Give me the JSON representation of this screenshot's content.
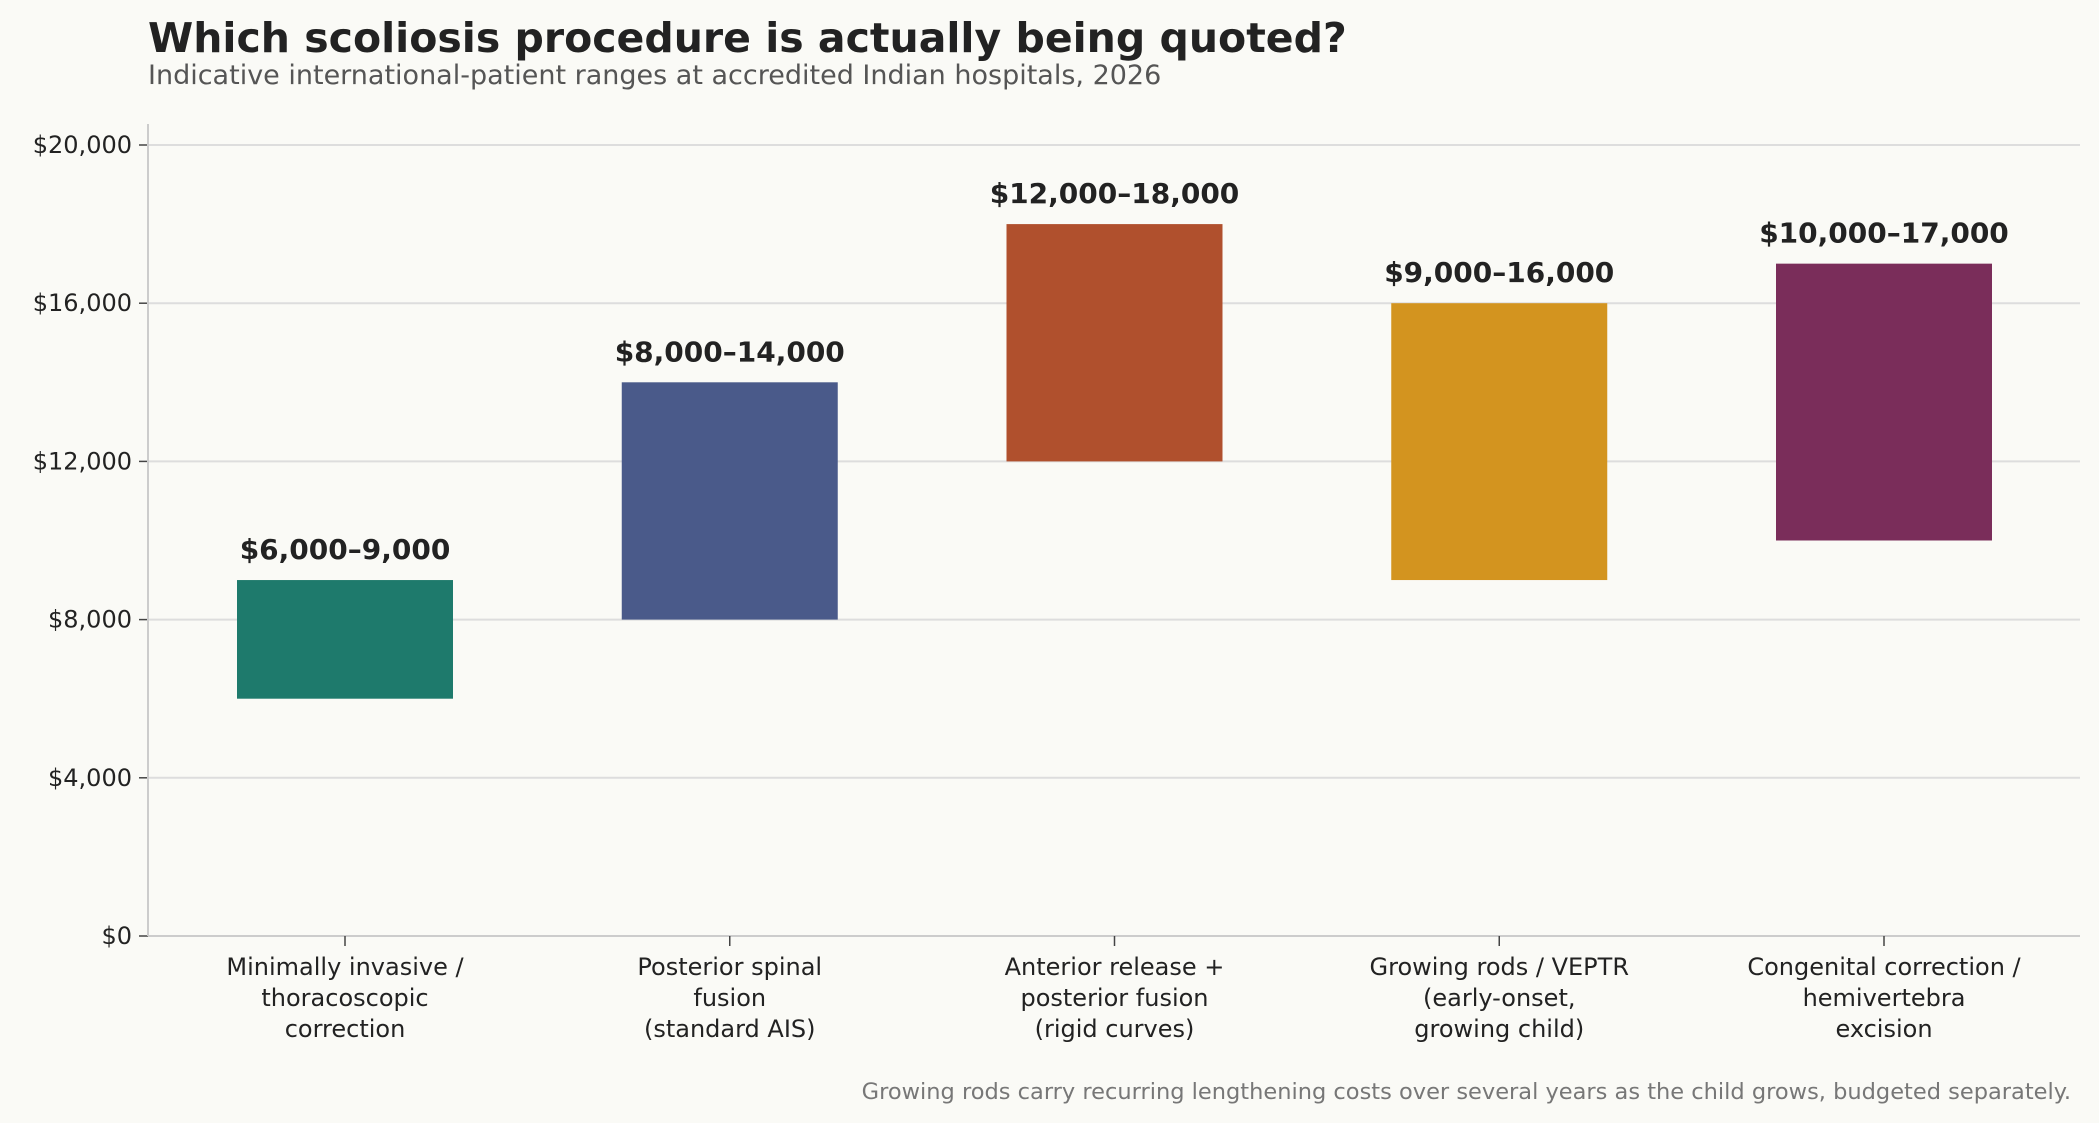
{
  "chart_data": {
    "type": "bar",
    "title": "Which scoliosis procedure is actually being quoted?",
    "subtitle": "Indicative international-patient ranges at accredited Indian hospitals, 2026",
    "xlabel": "",
    "ylabel": "",
    "ylim": [
      0,
      20000
    ],
    "yticks": [
      0,
      4000,
      8000,
      12000,
      16000,
      20000
    ],
    "ytick_labels": [
      "$0",
      "$4,000",
      "$8,000",
      "$12,000",
      "$16,000",
      "$20,000"
    ],
    "grid": true,
    "categories": [
      [
        "Minimally invasive /",
        "thoracoscopic",
        "correction"
      ],
      [
        "Posterior spinal",
        "fusion",
        "(standard AIS)"
      ],
      [
        "Anterior release +",
        "posterior fusion",
        "(rigid curves)"
      ],
      [
        "Growing rods / VEPTR",
        "(early-onset,",
        "growing child)"
      ],
      [
        "Congenital correction /",
        "hemivertebra",
        "excision"
      ]
    ],
    "low": [
      6000,
      8000,
      12000,
      9000,
      10000
    ],
    "high": [
      9000,
      14000,
      18000,
      16000,
      17000
    ],
    "data_labels": [
      "$6,000–9,000",
      "$8,000–14,000",
      "$12,000–18,000",
      "$9,000–16,000",
      "$10,000–17,000"
    ],
    "colors": [
      "#1e7a6c",
      "#4a5a8a",
      "#b0502d",
      "#d3941f",
      "#7a2d5a"
    ],
    "footnote": "Growing rods carry recurring lengthening costs over several years as the child grows, budgeted separately."
  }
}
